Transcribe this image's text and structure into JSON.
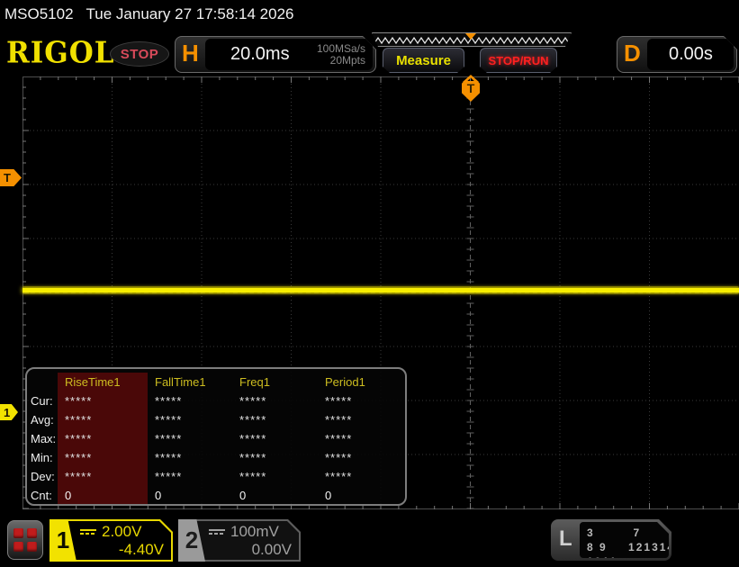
{
  "status_bar": {
    "model": "MSO5102",
    "datetime": "Tue January 27 17:58:14 2026"
  },
  "toolbar": {
    "logo": "RIGOL",
    "run_state": "STOP",
    "horizontal": {
      "label": "H",
      "timebase": "20.0ms",
      "sample_rate": "100MSa/s",
      "mem_depth": "20Mpts"
    },
    "measure_label": "Measure",
    "stop_run_label": "STOP/RUN",
    "delay": {
      "label": "D",
      "value": "0.00s"
    }
  },
  "graticule": {
    "trigger_level_marker": "T",
    "trigger_position_marker": "T",
    "ch1_position_marker": "1"
  },
  "measurements": {
    "headers": [
      "RiseTime1",
      "FallTime1",
      "Freq1",
      "Period1"
    ],
    "row_labels": [
      "Cur:",
      "Avg:",
      "Max:",
      "Min:",
      "Dev:",
      "Cnt:"
    ],
    "values": [
      [
        "*****",
        "*****",
        "*****",
        "*****"
      ],
      [
        "*****",
        "*****",
        "*****",
        "*****"
      ],
      [
        "*****",
        "*****",
        "*****",
        "*****"
      ],
      [
        "*****",
        "*****",
        "*****",
        "*****"
      ],
      [
        "*****",
        "*****",
        "*****",
        "*****"
      ],
      [
        "0",
        "0",
        "0",
        "0"
      ]
    ]
  },
  "channels": {
    "ch1": {
      "number": "1",
      "scale": "2.00V",
      "offset": "-4.40V"
    },
    "ch2": {
      "number": "2",
      "scale": "100mV",
      "offset": "0.00V"
    },
    "logic": {
      "label": "L",
      "row1a": "0 1 2 3",
      "row1b": "4 5 6 7",
      "row2a": "8 9 1011",
      "row2b": "12131415"
    }
  },
  "colors": {
    "channel1_yellow": "#f2e200",
    "trigger_orange": "#f59000",
    "stop_run_red": "#ff2020",
    "run_state_red": "#d84a5a",
    "measure_yellow": "#e8e000",
    "table_header_yellow": "#cdbd20",
    "table_highlight_maroon": "#4a0808",
    "logic_red_squares": "#c01c1c"
  }
}
